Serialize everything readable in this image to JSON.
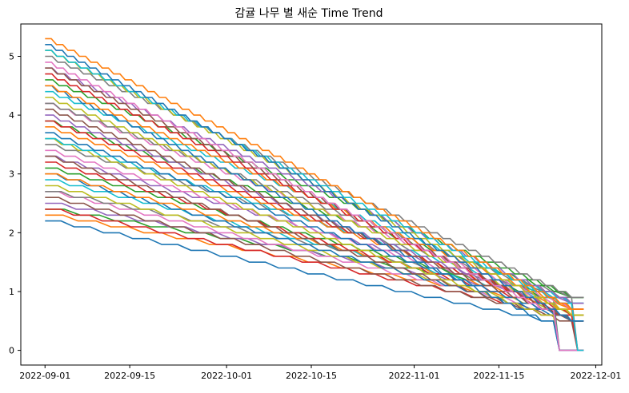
{
  "chart_data": {
    "type": "line",
    "title": "감귤 나무 별 새순 Time Trend",
    "xlabel": "",
    "ylabel": "",
    "x_axis_type": "date",
    "x_range": [
      "2022-08-28",
      "2022-12-02"
    ],
    "ylim": [
      -0.25,
      5.55
    ],
    "grid": false,
    "legend": "none",
    "x_tick_labels": [
      "2022-09-01",
      "2022-09-15",
      "2022-10-01",
      "2022-10-15",
      "2022-11-01",
      "2022-11-15",
      "2022-12-01"
    ],
    "y_ticks": [
      0,
      1,
      2,
      3,
      4,
      5
    ],
    "series_pattern": {
      "count": 42,
      "start_date": "2022-09-01",
      "end_date": "2022-11-29",
      "start_values_range": [
        2.2,
        5.3
      ],
      "end_values_range": [
        0.5,
        0.9
      ],
      "step_size": 0.1,
      "drop_to_zero_dates": [
        "2022-11-24",
        "2022-11-25",
        "2022-11-26",
        "2022-11-27",
        "2022-11-28",
        "2022-11-29"
      ]
    },
    "colors": [
      "#1f77b4",
      "#ff7f0e",
      "#2ca02c",
      "#d62728",
      "#9467bd",
      "#8c564b",
      "#e377c2",
      "#7f7f7f",
      "#bcbd22",
      "#17becf"
    ]
  }
}
